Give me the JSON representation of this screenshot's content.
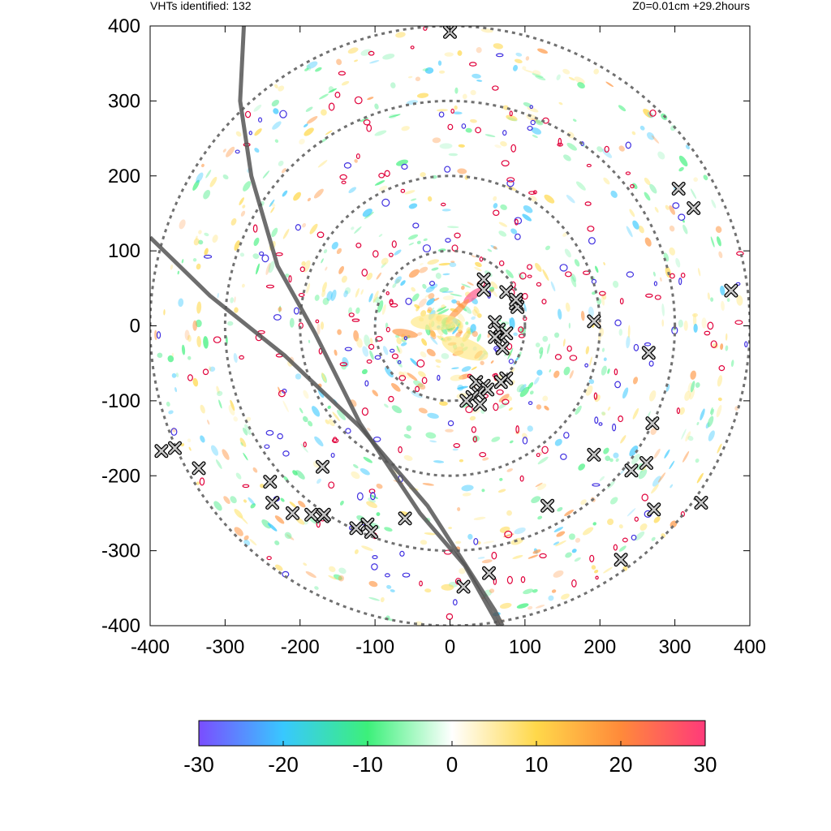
{
  "header": {
    "left": "VHTs identified: 132",
    "right": "Z0=0.01cm  +29.2hours"
  },
  "colors": {
    "ring": "#707070",
    "track": "#555555",
    "marker_fill": "#c8c8c8",
    "contour_pos": "#e0003a",
    "contour_neg": "#4030e0",
    "colormap": [
      "#7a4dff",
      "#38c8ff",
      "#3cf07a",
      "#ffffff",
      "#ffd84a",
      "#ff8a3a",
      "#ff3a7a"
    ]
  },
  "chart_data": {
    "type": "scatter",
    "xlim": [
      -400,
      400
    ],
    "ylim": [
      -400,
      400
    ],
    "xticks": [
      -400,
      -300,
      -200,
      -100,
      0,
      100,
      200,
      300,
      400
    ],
    "yticks": [
      -400,
      -300,
      -200,
      -100,
      0,
      100,
      200,
      300,
      400
    ],
    "xtick_labels": [
      "-400",
      "-300",
      "-200",
      "-100",
      "0",
      "100",
      "200",
      "300",
      "400"
    ],
    "ytick_labels": [
      "-400",
      "-300",
      "-200",
      "-100",
      "0",
      "100",
      "200",
      "300",
      "400"
    ],
    "range_rings": [
      100,
      200,
      300,
      400
    ],
    "tracks": [
      [
        [
          -400,
          118
        ],
        [
          -320,
          40
        ],
        [
          -220,
          -40
        ],
        [
          -120,
          -135
        ],
        [
          -30,
          -240
        ],
        [
          60,
          -380
        ],
        [
          70,
          -400
        ]
      ],
      [
        [
          -275,
          400
        ],
        [
          -280,
          300
        ],
        [
          -265,
          200
        ],
        [
          -230,
          80
        ],
        [
          -180,
          -10
        ],
        [
          -120,
          -130
        ],
        [
          -40,
          -250
        ],
        [
          20,
          -320
        ],
        [
          65,
          -400
        ]
      ]
    ],
    "vht_markers": [
      [
        0,
        392
      ],
      [
        45,
        62
      ],
      [
        45,
        48
      ],
      [
        75,
        45
      ],
      [
        88,
        30
      ],
      [
        90,
        25
      ],
      [
        88,
        35
      ],
      [
        60,
        5
      ],
      [
        65,
        -5
      ],
      [
        68,
        -15
      ],
      [
        75,
        -10
      ],
      [
        70,
        -30
      ],
      [
        60,
        -15
      ],
      [
        35,
        -75
      ],
      [
        45,
        -80
      ],
      [
        50,
        -85
      ],
      [
        38,
        -90
      ],
      [
        30,
        -95
      ],
      [
        22,
        -100
      ],
      [
        40,
        -105
      ],
      [
        75,
        -70
      ],
      [
        68,
        -75
      ],
      [
        192,
        6
      ],
      [
        265,
        -36
      ],
      [
        270,
        -130
      ],
      [
        262,
        -183
      ],
      [
        242,
        -193
      ],
      [
        192,
        -172
      ],
      [
        130,
        -240
      ],
      [
        272,
        -245
      ],
      [
        228,
        -312
      ],
      [
        52,
        -330
      ],
      [
        18,
        -348
      ],
      [
        305,
        183
      ],
      [
        325,
        157
      ],
      [
        375,
        47
      ],
      [
        335,
        -236
      ],
      [
        -385,
        -167
      ],
      [
        -367,
        -163
      ],
      [
        -335,
        -190
      ],
      [
        -240,
        -208
      ],
      [
        -237,
        -236
      ],
      [
        -210,
        -250
      ],
      [
        -185,
        -252
      ],
      [
        -170,
        -254
      ],
      [
        -168,
        -252
      ],
      [
        -125,
        -270
      ],
      [
        -110,
        -265
      ],
      [
        -105,
        -275
      ],
      [
        -60,
        -257
      ],
      [
        -170,
        -188
      ]
    ],
    "colorbar": {
      "min": -30,
      "max": 30,
      "ticks": [
        -30,
        -20,
        -10,
        0,
        10,
        20,
        30
      ],
      "tick_labels": [
        "-30",
        "-20",
        "-10",
        "0",
        "10",
        "20",
        "30"
      ]
    }
  }
}
